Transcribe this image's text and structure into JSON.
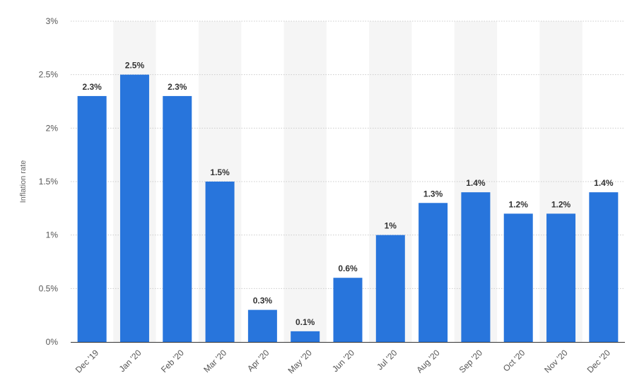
{
  "chart_data": {
    "type": "bar",
    "title": "",
    "xlabel": "",
    "ylabel": "Inflation rate",
    "categories": [
      "Dec '19",
      "Jan '20",
      "Feb '20",
      "Mar '20",
      "Apr '20",
      "May '20",
      "Jun '20",
      "Jul '20",
      "Aug '20",
      "Sep '20",
      "Oct '20",
      "Nov '20",
      "Dec '20"
    ],
    "values": [
      2.3,
      2.5,
      2.3,
      1.5,
      0.3,
      0.1,
      0.6,
      1,
      1.3,
      1.4,
      1.2,
      1.2,
      1.4
    ],
    "value_labels": [
      "2.3%",
      "2.5%",
      "2.3%",
      "1.5%",
      "0.3%",
      "0.1%",
      "0.6%",
      "1%",
      "1.3%",
      "1.4%",
      "1.2%",
      "1.2%",
      "1.4%"
    ],
    "ylim": [
      0,
      3
    ],
    "yticks": [
      0,
      0.5,
      1,
      1.5,
      2,
      2.5,
      3
    ],
    "ytick_labels": [
      "0%",
      "0.5%",
      "1%",
      "1.5%",
      "2%",
      "2.5%",
      "3%"
    ],
    "grid": true,
    "colors": {
      "bar": "#2875dc",
      "band": "#f5f5f5",
      "grid": "#cccccc",
      "axis": "#333333"
    }
  }
}
